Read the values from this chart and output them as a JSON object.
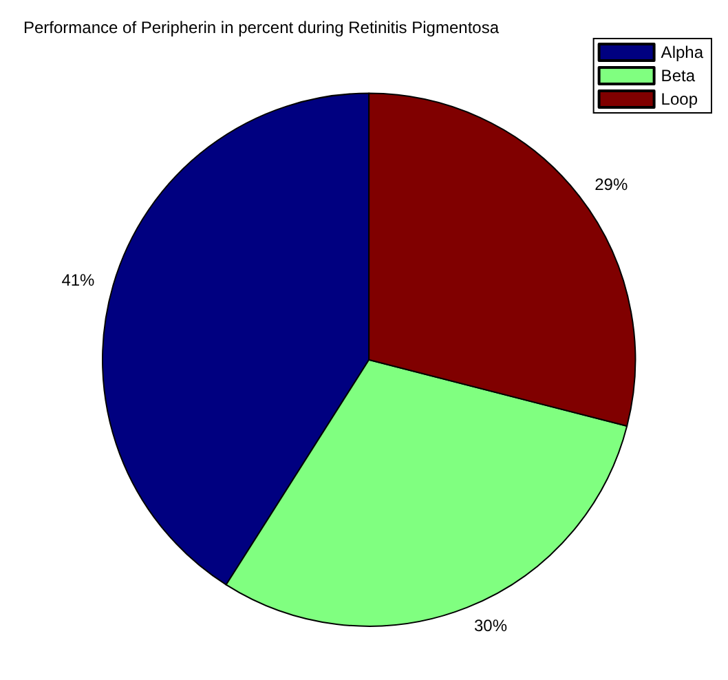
{
  "chart_data": {
    "type": "pie",
    "title": "Performance of Peripherin in percent during Retinitis Pigmentosa",
    "categories": [
      "Alpha",
      "Beta",
      "Loop"
    ],
    "values": [
      41,
      30,
      29
    ],
    "colors": [
      "#000080",
      "#80ff80",
      "#800000"
    ],
    "value_labels": [
      "41%",
      "30%",
      "29%"
    ],
    "legend": "top right"
  }
}
